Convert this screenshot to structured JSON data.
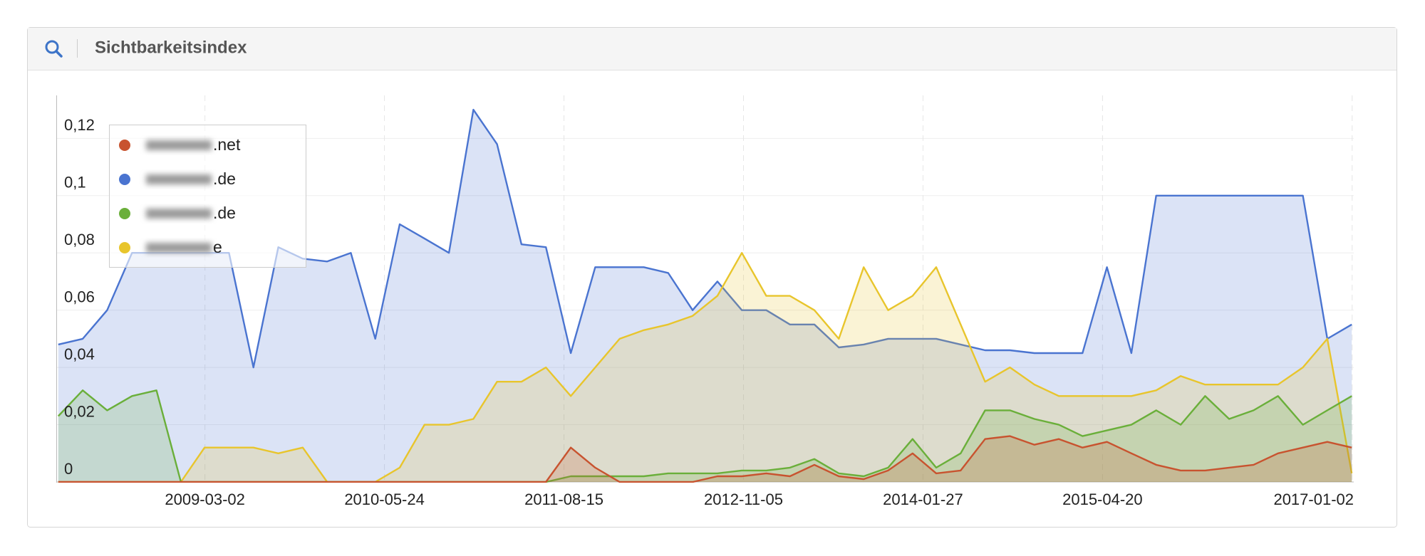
{
  "panel_title": "Sichtbarkeitsindex",
  "chart_data": {
    "type": "area",
    "legend": "upper left",
    "grid": true,
    "x": [
      "2008-03-01",
      "2008-05-01",
      "2008-07-01",
      "2008-09-01",
      "2008-11-01",
      "2009-01-01",
      "2009-03-01",
      "2009-05-01",
      "2009-07-01",
      "2009-09-01",
      "2009-11-01",
      "2010-01-01",
      "2010-03-01",
      "2010-05-01",
      "2010-07-01",
      "2010-09-01",
      "2010-11-01",
      "2011-01-01",
      "2011-03-01",
      "2011-05-01",
      "2011-07-01",
      "2011-09-01",
      "2011-11-01",
      "2012-01-01",
      "2012-03-01",
      "2012-05-01",
      "2012-07-01",
      "2012-09-01",
      "2012-11-01",
      "2013-01-01",
      "2013-03-01",
      "2013-05-01",
      "2013-07-01",
      "2013-09-01",
      "2013-11-01",
      "2014-01-01",
      "2014-03-01",
      "2014-05-01",
      "2014-07-01",
      "2014-09-01",
      "2014-11-01",
      "2015-01-01",
      "2015-03-01",
      "2015-05-01",
      "2015-07-01",
      "2015-09-01",
      "2015-11-01",
      "2016-01-01",
      "2016-03-01",
      "2016-05-01",
      "2016-07-01",
      "2016-09-01",
      "2016-11-01",
      "2017-01-01"
    ],
    "xlim": [
      "2008-02-25",
      "2017-01-06"
    ],
    "xticks": [
      "2009-03-02",
      "2010-05-24",
      "2011-08-15",
      "2012-11-05",
      "2014-01-27",
      "2015-04-20",
      "2017-01-02"
    ],
    "ylim": [
      0,
      0.135
    ],
    "yticks": [
      0,
      {
        "value": 0.02,
        "label": "0,02"
      },
      {
        "value": 0.04,
        "label": "0,04"
      },
      {
        "value": 0.06,
        "label": "0,06"
      },
      {
        "value": 0.08,
        "label": "0,08"
      },
      {
        "value": 0.1,
        "label": "0,1"
      },
      {
        "value": 0.12,
        "label": "0,12"
      }
    ],
    "series": [
      {
        "name": ".net",
        "color": "#c8532f",
        "values": [
          0,
          0,
          0,
          0,
          0,
          0,
          0,
          0,
          0,
          0,
          0,
          0,
          0,
          0,
          0,
          0,
          0,
          0,
          0,
          0,
          0,
          0.012,
          0.005,
          0,
          0,
          0,
          0,
          0.002,
          0.002,
          0.003,
          0.002,
          0.006,
          0.002,
          0.001,
          0.004,
          0.01,
          0.003,
          0.004,
          0.015,
          0.016,
          0.013,
          0.015,
          0.012,
          0.014,
          0.01,
          0.006,
          0.004,
          0.004,
          0.005,
          0.006,
          0.01,
          0.012,
          0.014,
          0.012
        ]
      },
      {
        "name": ".de",
        "color": "#4a74d0",
        "values": [
          0.048,
          0.05,
          0.06,
          0.08,
          0.08,
          0.08,
          0.08,
          0.08,
          0.04,
          0.082,
          0.078,
          0.077,
          0.08,
          0.05,
          0.09,
          0.085,
          0.08,
          0.13,
          0.118,
          0.083,
          0.082,
          0.045,
          0.075,
          0.075,
          0.075,
          0.073,
          0.06,
          0.07,
          0.06,
          0.06,
          0.055,
          0.055,
          0.047,
          0.048,
          0.05,
          0.05,
          0.05,
          0.048,
          0.046,
          0.046,
          0.045,
          0.045,
          0.045,
          0.075,
          0.045,
          0.1,
          0.1,
          0.1,
          0.1,
          0.1,
          0.1,
          0.1,
          0.05,
          0.055
        ]
      },
      {
        "name": ".de",
        "color": "#6aaf3a",
        "values": [
          0.023,
          0.032,
          0.025,
          0.03,
          0.032,
          0,
          0,
          0,
          0,
          0,
          0,
          0,
          0,
          0,
          0,
          0,
          0,
          0,
          0,
          0,
          0,
          0.002,
          0.002,
          0.002,
          0.002,
          0.003,
          0.003,
          0.003,
          0.004,
          0.004,
          0.005,
          0.008,
          0.003,
          0.002,
          0.005,
          0.015,
          0.005,
          0.01,
          0.025,
          0.025,
          0.022,
          0.02,
          0.016,
          0.018,
          0.02,
          0.025,
          0.02,
          0.03,
          0.022,
          0.025,
          0.03,
          0.02,
          0.025,
          0.03
        ]
      },
      {
        "name": "e",
        "color": "#e8c52c",
        "values": [
          0,
          0,
          0,
          0,
          0,
          0,
          0.012,
          0.012,
          0.012,
          0.01,
          0.012,
          0,
          0,
          0,
          0.005,
          0.02,
          0.02,
          0.022,
          0.035,
          0.035,
          0.04,
          0.03,
          0.04,
          0.05,
          0.053,
          0.055,
          0.058,
          0.065,
          0.08,
          0.065,
          0.065,
          0.06,
          0.05,
          0.075,
          0.06,
          0.065,
          0.075,
          0.055,
          0.035,
          0.04,
          0.034,
          0.03,
          0.03,
          0.03,
          0.03,
          0.032,
          0.037,
          0.034,
          0.034,
          0.034,
          0.034,
          0.04,
          0.05,
          0.003
        ]
      }
    ]
  }
}
